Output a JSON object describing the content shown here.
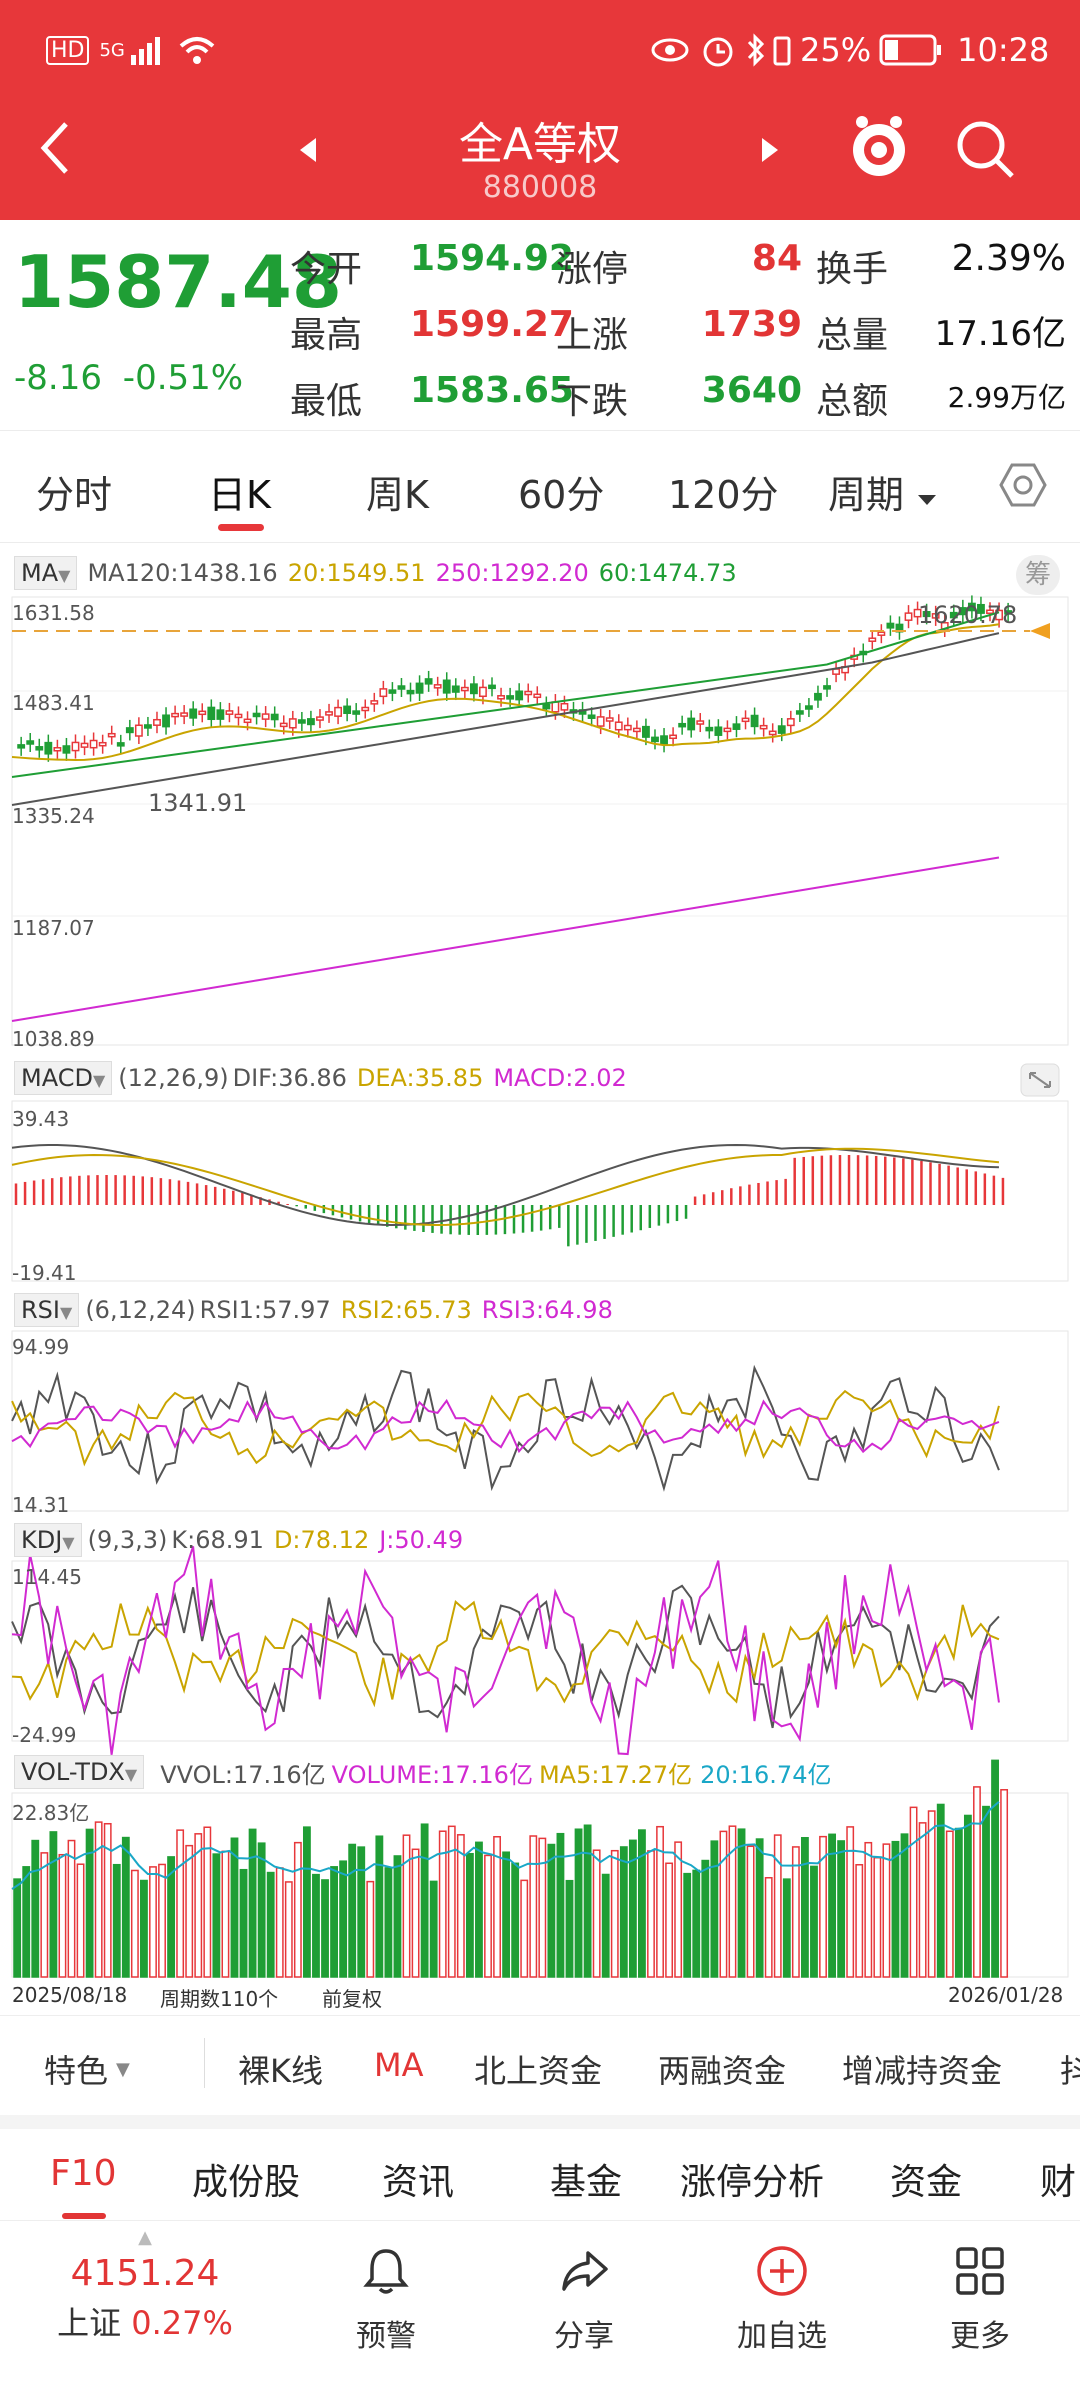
{
  "status": {
    "time": "10:28",
    "battery": "25%",
    "hd": "HD",
    "net": "5G"
  },
  "header": {
    "title": "全A等权",
    "code": "880008"
  },
  "quote": {
    "price": "1587.48",
    "change": "-8.16",
    "change_pct": "-0.51%",
    "open_label": "今开",
    "open": "1594.92",
    "high_label": "最高",
    "high": "1599.27",
    "low_label": "最低",
    "low": "1583.65",
    "limitup_label": "涨停",
    "limitup": "84",
    "up_label": "上涨",
    "up": "1739",
    "down_label": "下跌",
    "down": "3640",
    "turnover_label": "换手",
    "turnover": "2.39%",
    "volume_label": "总量",
    "volume": "17.16亿",
    "amount_label": "总额",
    "amount": "2.99万亿"
  },
  "tabs": [
    "分时",
    "日K",
    "周K",
    "60分",
    "120分",
    "周期"
  ],
  "ma": {
    "label": "MA",
    "ma120": "MA120:1438.16",
    "ma20": "20:1549.51",
    "ma250": "250:1292.20",
    "ma60": "60:1474.73",
    "chip": "筹"
  },
  "ma_axis": [
    "1631.58",
    "1483.41",
    "1335.24",
    "1187.07",
    "1038.89"
  ],
  "ma_annot": {
    "high": "1620.78",
    "low": "1341.91"
  },
  "macd": {
    "label": "MACD",
    "params": "(12,26,9)",
    "dif": "DIF:36.86",
    "dea": "DEA:35.85",
    "macd": "MACD:2.02",
    "top": "39.43",
    "bottom": "-19.41"
  },
  "rsi": {
    "label": "RSI",
    "params": "(6,12,24)",
    "r1": "RSI1:57.97",
    "r2": "RSI2:65.73",
    "r3": "RSI3:64.98",
    "top": "94.99",
    "bottom": "14.31"
  },
  "kdj": {
    "label": "KDJ",
    "params": "(9,3,3)",
    "k": "K:68.91",
    "d": "D:78.12",
    "j": "J:50.49",
    "top": "114.45",
    "bottom": "-24.99"
  },
  "vol": {
    "label": "VOL-TDX",
    "vvol": "VVOL:17.16亿",
    "volume": "VOLUME:17.16亿",
    "ma5": "MA5:17.27亿",
    "ma20": "20:16.74亿",
    "top": "22.83亿"
  },
  "footer_axis": {
    "start": "2025/08/18",
    "period": "周期数110个",
    "adj": "前复权",
    "end": "2026/01/28"
  },
  "bottom_tabs": [
    "特色",
    "裸K线",
    "MA",
    "北上资金",
    "两融资金",
    "增减持资金",
    "抖"
  ],
  "f10_tabs": [
    "F10",
    "成份股",
    "资讯",
    "基金",
    "涨停分析",
    "资金",
    "财"
  ],
  "nav": {
    "index_value": "4151.24",
    "index_name": "上证",
    "index_pct": "0.27%",
    "items": [
      "预警",
      "分享",
      "加自选",
      "更多"
    ]
  },
  "colors": {
    "red": "#e7373a",
    "green": "#1f9e35",
    "gold": "#c9a400",
    "magenta": "#d12ad1",
    "cyan": "#1aa7c7"
  }
}
